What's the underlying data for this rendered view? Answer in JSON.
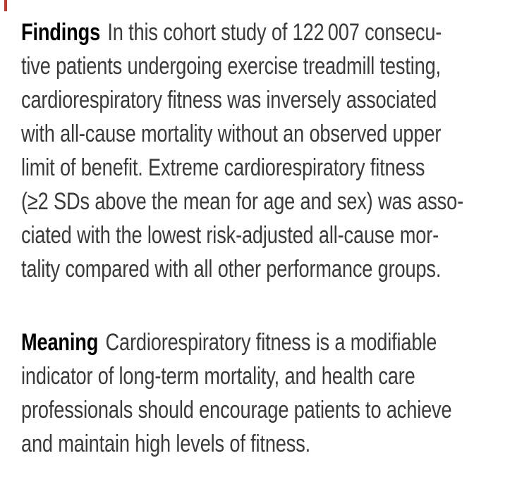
{
  "accent_color": "#c8372d",
  "text_color": "#3a3a3a",
  "key_points": {
    "findings": {
      "label": "Findings",
      "lines": [
        "In this cohort study of 122 007 consecu-",
        "tive patients undergoing exercise treadmill testing,",
        "cardiorespiratory fitness was inversely associated",
        "with all-cause mortality without an observed upper",
        "limit of benefit. Extreme cardiorespiratory fitness",
        "(≥2 SDs above the mean for age and sex) was asso-",
        "ciated with the lowest risk-adjusted all-cause mor-",
        "tality compared with all other performance groups."
      ]
    },
    "meaning": {
      "label": "Meaning",
      "lines": [
        "Cardiorespiratory fitness is a modifiable",
        "indicator of long-term mortality, and health care",
        "professionals should encourage patients to achieve",
        "and maintain high levels of fitness."
      ]
    }
  }
}
